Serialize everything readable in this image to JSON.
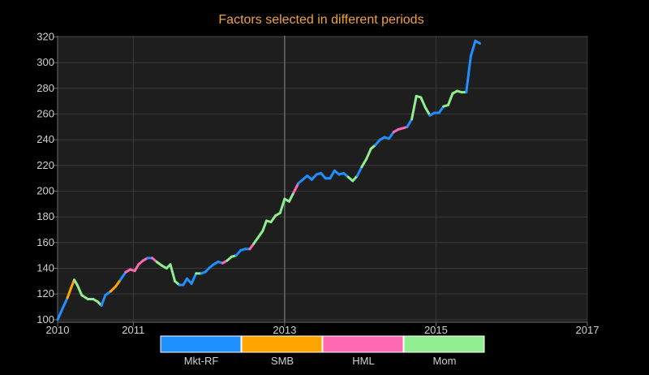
{
  "chart_data": {
    "type": "line",
    "title": "Factors selected in different periods",
    "xlabel": "",
    "ylabel": "",
    "xlim": [
      2010.0,
      2017.0
    ],
    "ylim": [
      98,
      321
    ],
    "x_ticks": [
      {
        "value": 2010,
        "label": "2010"
      },
      {
        "value": 2011,
        "label": "2011"
      },
      {
        "value": 2013,
        "label": "2013"
      },
      {
        "value": 2015,
        "label": "2015"
      },
      {
        "value": 2017,
        "label": "2017"
      }
    ],
    "x_major_lines": [
      2013
    ],
    "y_ticks": [
      100,
      120,
      140,
      160,
      180,
      200,
      220,
      240,
      260,
      280,
      300,
      320
    ],
    "grid": true,
    "legend_position": "bottom",
    "colors": {
      "background": "#000000",
      "plot_background": "#1e1e1e",
      "grid": "#3a3a3a",
      "grid_major": "#6b6b6b",
      "axis": "#6b6b6b",
      "tick_text": "#d0d0d0",
      "title": "#f2a23a",
      "legend_text": "#d0d0d0"
    },
    "series": [
      {
        "name": "Mkt-RF",
        "color": "#1e90ff"
      },
      {
        "name": "SMB",
        "color": "#ffa500"
      },
      {
        "name": "HML",
        "color": "#ff69b4"
      },
      {
        "name": "Mom",
        "color": "#90ee90"
      }
    ],
    "points": [
      {
        "x": 2010.0,
        "y": 100,
        "factor": "Mkt-RF"
      },
      {
        "x": 2010.06,
        "y": 108,
        "factor": "Mkt-RF"
      },
      {
        "x": 2010.13,
        "y": 117,
        "factor": "Mkt-RF"
      },
      {
        "x": 2010.18,
        "y": 125,
        "factor": "SMB"
      },
      {
        "x": 2010.22,
        "y": 131,
        "factor": "SMB"
      },
      {
        "x": 2010.26,
        "y": 127,
        "factor": "Mom"
      },
      {
        "x": 2010.32,
        "y": 119,
        "factor": "Mom"
      },
      {
        "x": 2010.4,
        "y": 116,
        "factor": "Mom"
      },
      {
        "x": 2010.47,
        "y": 116,
        "factor": "Mom"
      },
      {
        "x": 2010.53,
        "y": 114,
        "factor": "Mom"
      },
      {
        "x": 2010.58,
        "y": 111,
        "factor": "Mom"
      },
      {
        "x": 2010.63,
        "y": 119,
        "factor": "Mkt-RF"
      },
      {
        "x": 2010.7,
        "y": 122,
        "factor": "Mkt-RF"
      },
      {
        "x": 2010.77,
        "y": 126,
        "factor": "SMB"
      },
      {
        "x": 2010.83,
        "y": 131,
        "factor": "SMB"
      },
      {
        "x": 2010.9,
        "y": 137,
        "factor": "Mkt-RF"
      },
      {
        "x": 2010.96,
        "y": 139,
        "factor": "HML"
      },
      {
        "x": 2011.02,
        "y": 138,
        "factor": "HML"
      },
      {
        "x": 2011.07,
        "y": 143,
        "factor": "HML"
      },
      {
        "x": 2011.13,
        "y": 146,
        "factor": "HML"
      },
      {
        "x": 2011.19,
        "y": 148,
        "factor": "HML"
      },
      {
        "x": 2011.25,
        "y": 148,
        "factor": "Mkt-RF"
      },
      {
        "x": 2011.31,
        "y": 145,
        "factor": "HML"
      },
      {
        "x": 2011.38,
        "y": 142,
        "factor": "Mom"
      },
      {
        "x": 2011.44,
        "y": 140,
        "factor": "Mom"
      },
      {
        "x": 2011.49,
        "y": 143,
        "factor": "Mom"
      },
      {
        "x": 2011.55,
        "y": 130,
        "factor": "Mom"
      },
      {
        "x": 2011.61,
        "y": 127,
        "factor": "Mom"
      },
      {
        "x": 2011.66,
        "y": 127,
        "factor": "Mkt-RF"
      },
      {
        "x": 2011.71,
        "y": 132,
        "factor": "Mkt-RF"
      },
      {
        "x": 2011.77,
        "y": 128,
        "factor": "Mkt-RF"
      },
      {
        "x": 2011.83,
        "y": 136,
        "factor": "Mkt-RF"
      },
      {
        "x": 2011.9,
        "y": 136,
        "factor": "Mom"
      },
      {
        "x": 2011.95,
        "y": 137,
        "factor": "Mkt-RF"
      },
      {
        "x": 2012.0,
        "y": 140,
        "factor": "Mkt-RF"
      },
      {
        "x": 2012.06,
        "y": 143,
        "factor": "Mkt-RF"
      },
      {
        "x": 2012.12,
        "y": 145,
        "factor": "Mkt-RF"
      },
      {
        "x": 2012.18,
        "y": 144,
        "factor": "Mkt-RF"
      },
      {
        "x": 2012.24,
        "y": 146,
        "factor": "HML"
      },
      {
        "x": 2012.3,
        "y": 149,
        "factor": "Mom"
      },
      {
        "x": 2012.36,
        "y": 150,
        "factor": "Mom"
      },
      {
        "x": 2012.42,
        "y": 154,
        "factor": "Mkt-RF"
      },
      {
        "x": 2012.48,
        "y": 155,
        "factor": "Mkt-RF"
      },
      {
        "x": 2012.54,
        "y": 155,
        "factor": "Mkt-RF"
      },
      {
        "x": 2012.59,
        "y": 159,
        "factor": "HML"
      },
      {
        "x": 2012.65,
        "y": 164,
        "factor": "Mom"
      },
      {
        "x": 2012.71,
        "y": 169,
        "factor": "Mom"
      },
      {
        "x": 2012.76,
        "y": 177,
        "factor": "Mom"
      },
      {
        "x": 2012.82,
        "y": 176,
        "factor": "Mom"
      },
      {
        "x": 2012.88,
        "y": 181,
        "factor": "Mom"
      },
      {
        "x": 2012.94,
        "y": 183,
        "factor": "Mom"
      },
      {
        "x": 2013.0,
        "y": 194,
        "factor": "Mom"
      },
      {
        "x": 2013.06,
        "y": 192,
        "factor": "Mom"
      },
      {
        "x": 2013.12,
        "y": 199,
        "factor": "Mom"
      },
      {
        "x": 2013.18,
        "y": 206,
        "factor": "HML"
      },
      {
        "x": 2013.24,
        "y": 209,
        "factor": "Mkt-RF"
      },
      {
        "x": 2013.3,
        "y": 212,
        "factor": "Mkt-RF"
      },
      {
        "x": 2013.36,
        "y": 209,
        "factor": "Mkt-RF"
      },
      {
        "x": 2013.42,
        "y": 213,
        "factor": "Mkt-RF"
      },
      {
        "x": 2013.48,
        "y": 214,
        "factor": "Mkt-RF"
      },
      {
        "x": 2013.54,
        "y": 210,
        "factor": "Mkt-RF"
      },
      {
        "x": 2013.6,
        "y": 210,
        "factor": "Mkt-RF"
      },
      {
        "x": 2013.66,
        "y": 216,
        "factor": "Mkt-RF"
      },
      {
        "x": 2013.72,
        "y": 213,
        "factor": "Mkt-RF"
      },
      {
        "x": 2013.78,
        "y": 214,
        "factor": "Mkt-RF"
      },
      {
        "x": 2013.84,
        "y": 211,
        "factor": "Mkt-RF"
      },
      {
        "x": 2013.9,
        "y": 208,
        "factor": "Mom"
      },
      {
        "x": 2013.96,
        "y": 212,
        "factor": "Mom"
      },
      {
        "x": 2014.02,
        "y": 219,
        "factor": "Mkt-RF"
      },
      {
        "x": 2014.08,
        "y": 225,
        "factor": "Mom"
      },
      {
        "x": 2014.14,
        "y": 233,
        "factor": "Mom"
      },
      {
        "x": 2014.2,
        "y": 236,
        "factor": "Mom"
      },
      {
        "x": 2014.26,
        "y": 240,
        "factor": "Mkt-RF"
      },
      {
        "x": 2014.32,
        "y": 242,
        "factor": "Mkt-RF"
      },
      {
        "x": 2014.38,
        "y": 241,
        "factor": "Mkt-RF"
      },
      {
        "x": 2014.44,
        "y": 246,
        "factor": "Mkt-RF"
      },
      {
        "x": 2014.5,
        "y": 248,
        "factor": "HML"
      },
      {
        "x": 2014.56,
        "y": 249,
        "factor": "HML"
      },
      {
        "x": 2014.62,
        "y": 250,
        "factor": "HML"
      },
      {
        "x": 2014.68,
        "y": 256,
        "factor": "Mkt-RF"
      },
      {
        "x": 2014.74,
        "y": 274,
        "factor": "Mom"
      },
      {
        "x": 2014.8,
        "y": 273,
        "factor": "Mom"
      },
      {
        "x": 2014.86,
        "y": 265,
        "factor": "Mom"
      },
      {
        "x": 2014.92,
        "y": 259,
        "factor": "Mom"
      },
      {
        "x": 2014.98,
        "y": 261,
        "factor": "Mkt-RF"
      },
      {
        "x": 2015.04,
        "y": 261,
        "factor": "Mkt-RF"
      },
      {
        "x": 2015.1,
        "y": 266,
        "factor": "Mkt-RF"
      },
      {
        "x": 2015.16,
        "y": 267,
        "factor": "Mom"
      },
      {
        "x": 2015.22,
        "y": 276,
        "factor": "Mom"
      },
      {
        "x": 2015.28,
        "y": 278,
        "factor": "Mom"
      },
      {
        "x": 2015.34,
        "y": 277,
        "factor": "Mom"
      },
      {
        "x": 2015.4,
        "y": 277,
        "factor": "Mom"
      },
      {
        "x": 2015.46,
        "y": 305,
        "factor": "Mkt-RF"
      },
      {
        "x": 2015.52,
        "y": 317,
        "factor": "Mkt-RF"
      },
      {
        "x": 2015.58,
        "y": 315,
        "factor": "Mkt-RF"
      }
    ]
  }
}
